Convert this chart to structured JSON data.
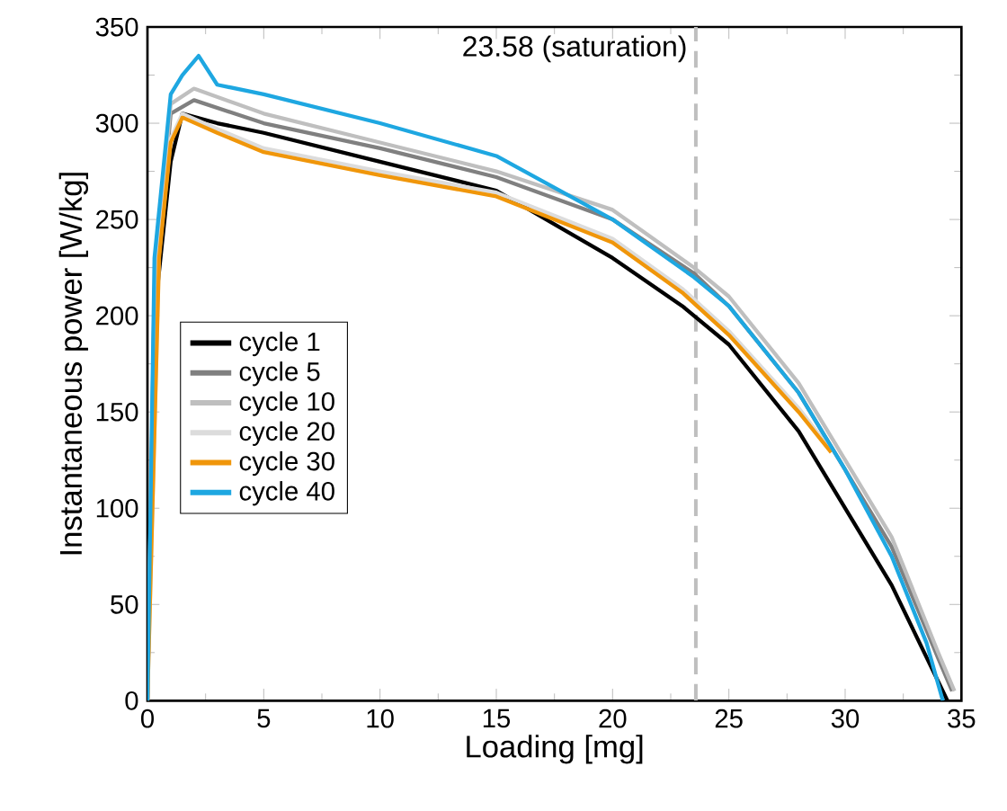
{
  "chart_data": {
    "type": "line",
    "xlabel": "Loading [mg]",
    "ylabel": "Instantaneous power [W/kg]",
    "xlim": [
      0,
      35
    ],
    "xticks": [
      0,
      5,
      10,
      15,
      20,
      25,
      30,
      35
    ],
    "ylim": [
      0,
      350
    ],
    "yticks": [
      0,
      50,
      100,
      150,
      200,
      250,
      300,
      350
    ],
    "grid": false,
    "legend": "left",
    "line_style": "solid",
    "marker": "none",
    "ref_lines": [
      {
        "axis": "x",
        "value": 23.58,
        "label": "23.58 (saturation)",
        "color": "#bfbfbf",
        "line_style": "dashed"
      }
    ],
    "series": [
      {
        "name": "cycle 1",
        "color": "#000000",
        "x": [
          0,
          0.3,
          1,
          1.5,
          3,
          5,
          10,
          15,
          20,
          23,
          25,
          28,
          30,
          32,
          33,
          34,
          34.4
        ],
        "values": [
          0,
          200,
          280,
          305,
          300,
          295,
          280,
          265,
          230,
          205,
          185,
          140,
          100,
          60,
          35,
          10,
          0
        ]
      },
      {
        "name": "cycle 5",
        "color": "#808080",
        "x": [
          0,
          0.3,
          1,
          2,
          5,
          10,
          15,
          20,
          23.5,
          25,
          28,
          30,
          32,
          34,
          34.6
        ],
        "values": [
          0,
          210,
          305,
          312,
          300,
          287,
          272,
          250,
          222,
          205,
          160,
          120,
          80,
          22,
          5
        ]
      },
      {
        "name": "cycle 10",
        "color": "#bfbfbf",
        "x": [
          0,
          0.3,
          1,
          2,
          5,
          10,
          15,
          20,
          23.5,
          25,
          28,
          30,
          32,
          34,
          34.7
        ],
        "values": [
          0,
          215,
          310,
          318,
          305,
          290,
          275,
          255,
          225,
          210,
          165,
          125,
          85,
          25,
          5
        ]
      },
      {
        "name": "cycle 20",
        "color": "#dcdcdc",
        "x": [
          0,
          0.5,
          1,
          1.5,
          3,
          5,
          10,
          15,
          20,
          23,
          25,
          28,
          29.4
        ],
        "values": [
          0,
          232,
          292,
          305,
          297,
          287,
          275,
          264,
          240,
          214,
          192,
          152,
          130
        ]
      },
      {
        "name": "cycle 30",
        "color": "#f0960a",
        "x": [
          0,
          0.5,
          1,
          1.5,
          3,
          5,
          10,
          15,
          20,
          23,
          25,
          28,
          29.4
        ],
        "values": [
          0,
          230,
          290,
          303,
          295,
          285,
          273,
          262,
          238,
          212,
          190,
          150,
          129
        ]
      },
      {
        "name": "cycle 40",
        "color": "#1ea7e1",
        "x": [
          0,
          0.3,
          1,
          1.5,
          2.2,
          3,
          5,
          10,
          15,
          20,
          23.5,
          25,
          28,
          30,
          32,
          33.5,
          34.2
        ],
        "values": [
          0,
          230,
          315,
          325,
          335,
          320,
          315,
          300,
          283,
          250,
          220,
          205,
          160,
          120,
          75,
          30,
          0
        ]
      }
    ]
  }
}
